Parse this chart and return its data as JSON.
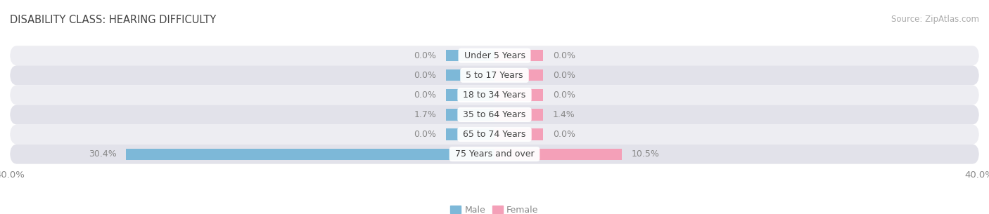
{
  "title": "DISABILITY CLASS: HEARING DIFFICULTY",
  "source": "Source: ZipAtlas.com",
  "categories": [
    "Under 5 Years",
    "5 to 17 Years",
    "18 to 34 Years",
    "35 to 64 Years",
    "65 to 74 Years",
    "75 Years and over"
  ],
  "male_values": [
    0.0,
    0.0,
    0.0,
    1.7,
    0.0,
    30.4
  ],
  "female_values": [
    0.0,
    0.0,
    0.0,
    1.4,
    0.0,
    10.5
  ],
  "male_color": "#7db8d8",
  "female_color": "#f4a0b8",
  "row_bg_even": "#ededf2",
  "row_bg_odd": "#e2e2ea",
  "x_min": -40.0,
  "x_max": 40.0,
  "min_bar_width": 4.0,
  "label_fontsize": 9,
  "title_fontsize": 10.5,
  "source_fontsize": 8.5,
  "category_fontsize": 9,
  "axis_label_fontsize": 9.5,
  "bar_height": 0.58,
  "figsize": [
    14.06,
    3.05
  ],
  "dpi": 100
}
